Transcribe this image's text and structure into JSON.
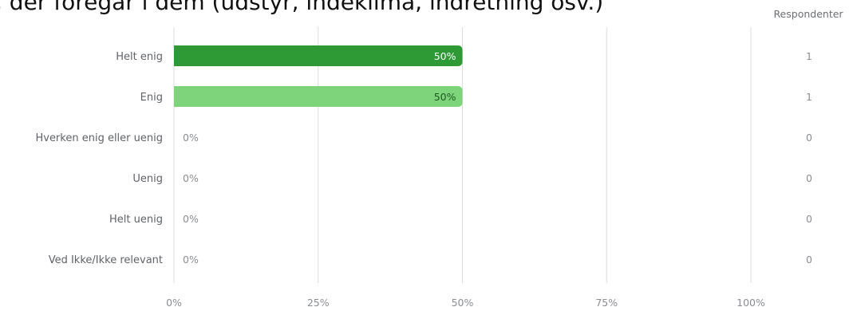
{
  "header": {
    "title_fragment": ", der foregår i dem (udstyr, indeklima, indretning osv.)"
  },
  "colors": {
    "dark_green": "#2e9a35",
    "light_green": "#7ed47b",
    "grid": "#dcdcdc",
    "label_on_dark": "#ffffff",
    "label_on_light": "#1f5a22"
  },
  "chart_data": {
    "type": "bar",
    "orientation": "horizontal",
    "categories": [
      "Helt enig",
      "Enig",
      "Hverken enig eller uenig",
      "Uenig",
      "Helt uenig",
      "Ved Ikke/Ikke relevant"
    ],
    "values": [
      50,
      50,
      0,
      0,
      0,
      0
    ],
    "value_labels": [
      "50%",
      "50%",
      "0%",
      "0%",
      "0%",
      "0%"
    ],
    "bar_colors": [
      "dark_green",
      "light_green",
      "",
      "",
      "",
      ""
    ],
    "xlim": [
      0,
      100
    ],
    "ticks": [
      0,
      25,
      50,
      75,
      100
    ],
    "tick_labels": [
      "0%",
      "25%",
      "50%",
      "75%",
      "100%"
    ],
    "grid": true,
    "respondents_header": "Respondenter",
    "respondents": [
      1,
      1,
      0,
      0,
      0,
      0
    ]
  }
}
